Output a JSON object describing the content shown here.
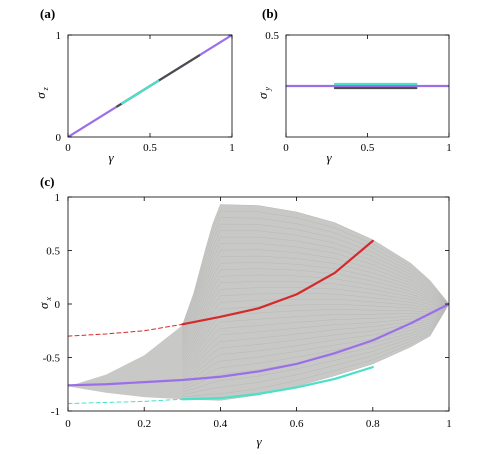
{
  "panels": {
    "a": {
      "label": "(a)",
      "xlabel": "γ",
      "ylabel": "σ",
      "ylabel_sub": "z",
      "xticks": [
        "0",
        "0.5",
        "1"
      ],
      "yticks": [
        "0",
        "1"
      ]
    },
    "b": {
      "label": "(b)",
      "xlabel": "γ",
      "ylabel": "σ",
      "ylabel_sub": "y",
      "xticks": [
        "0",
        "0.5",
        "1"
      ],
      "yticks": [
        "0.5"
      ]
    },
    "c": {
      "label": "(c)",
      "xlabel": "γ",
      "ylabel": "σ",
      "ylabel_sub": "x",
      "xticks": [
        "0",
        "0.2",
        "0.4",
        "0.6",
        "0.8",
        "1"
      ],
      "yticks": [
        "1",
        "0.5",
        "0",
        "-0.5",
        "-1"
      ]
    }
  },
  "colors": {
    "red": "#d42a2a",
    "purple": "#9b6fe8",
    "cyan": "#4de0c8",
    "dark": "#4d4d4d",
    "region": "#c8c8c6"
  },
  "chart_data": [
    {
      "type": "line",
      "panel": "a",
      "xlim": [
        0,
        1
      ],
      "ylim": [
        0,
        1
      ],
      "ylabel": "σ_z",
      "xlabel": "γ",
      "series": [
        {
          "color": "purple",
          "x": [
            0,
            1
          ],
          "y": [
            0,
            1
          ]
        },
        {
          "color": "dark",
          "x": [
            0.3,
            0.8
          ],
          "y": [
            0.3,
            0.8
          ]
        },
        {
          "color": "cyan",
          "x": [
            0.33,
            0.55
          ],
          "y": [
            0.33,
            0.55
          ]
        }
      ]
    },
    {
      "type": "line",
      "panel": "b",
      "xlim": [
        0,
        1
      ],
      "ylim": [
        -0.5,
        0.5
      ],
      "ylabel": "σ_y",
      "xlabel": "γ",
      "series": [
        {
          "color": "dark",
          "x": [
            0.3,
            0.8
          ],
          "y": [
            -0.02,
            -0.02
          ]
        },
        {
          "color": "purple",
          "x": [
            0,
            1
          ],
          "y": [
            0,
            0
          ]
        },
        {
          "color": "cyan",
          "x": [
            0.3,
            0.8
          ],
          "y": [
            0.02,
            0.02
          ]
        }
      ]
    },
    {
      "type": "line",
      "panel": "c",
      "xlim": [
        0,
        1
      ],
      "ylim": [
        -1,
        1
      ],
      "ylabel": "σ_x",
      "xlabel": "γ",
      "region": {
        "upper": [
          [
            0.3,
            -0.2
          ],
          [
            0.33,
            0.1
          ],
          [
            0.36,
            0.5
          ],
          [
            0.38,
            0.75
          ],
          [
            0.4,
            0.93
          ],
          [
            0.5,
            0.92
          ],
          [
            0.6,
            0.86
          ],
          [
            0.7,
            0.76
          ],
          [
            0.8,
            0.6
          ],
          [
            0.9,
            0.38
          ],
          [
            0.95,
            0.22
          ],
          [
            1.0,
            0.0
          ]
        ],
        "lower": [
          [
            0.3,
            -0.2
          ],
          [
            0.2,
            -0.48
          ],
          [
            0.1,
            -0.66
          ],
          [
            0.0,
            -0.77
          ],
          [
            0.1,
            -0.83
          ],
          [
            0.2,
            -0.87
          ],
          [
            0.3,
            -0.89
          ],
          [
            0.4,
            -0.9
          ],
          [
            0.5,
            -0.85
          ],
          [
            0.6,
            -0.77
          ],
          [
            0.7,
            -0.67
          ],
          [
            0.8,
            -0.56
          ],
          [
            0.9,
            -0.4
          ],
          [
            0.95,
            -0.3
          ],
          [
            1.0,
            0.0
          ]
        ]
      },
      "series": [
        {
          "color": "red",
          "dash": false,
          "x": [
            0.3,
            0.4,
            0.5,
            0.6,
            0.7,
            0.8
          ],
          "y": [
            -0.19,
            -0.12,
            -0.04,
            0.09,
            0.29,
            0.59
          ]
        },
        {
          "color": "red",
          "dash": true,
          "x": [
            0.0,
            0.1,
            0.2,
            0.3
          ],
          "y": [
            -0.3,
            -0.28,
            -0.25,
            -0.19
          ]
        },
        {
          "color": "purple",
          "dash": false,
          "x": [
            0.0,
            0.1,
            0.2,
            0.3,
            0.4,
            0.5,
            0.6,
            0.7,
            0.8,
            0.9,
            1.0
          ],
          "y": [
            -0.76,
            -0.75,
            -0.73,
            -0.71,
            -0.68,
            -0.63,
            -0.56,
            -0.46,
            -0.34,
            -0.18,
            0.0
          ]
        },
        {
          "color": "cyan",
          "dash": false,
          "x": [
            0.3,
            0.4,
            0.5,
            0.6,
            0.7,
            0.8
          ],
          "y": [
            -0.89,
            -0.88,
            -0.84,
            -0.78,
            -0.7,
            -0.59
          ]
        },
        {
          "color": "cyan",
          "dash": true,
          "x": [
            0.0,
            0.1,
            0.2,
            0.3
          ],
          "y": [
            -0.93,
            -0.92,
            -0.91,
            -0.89
          ]
        }
      ]
    }
  ]
}
